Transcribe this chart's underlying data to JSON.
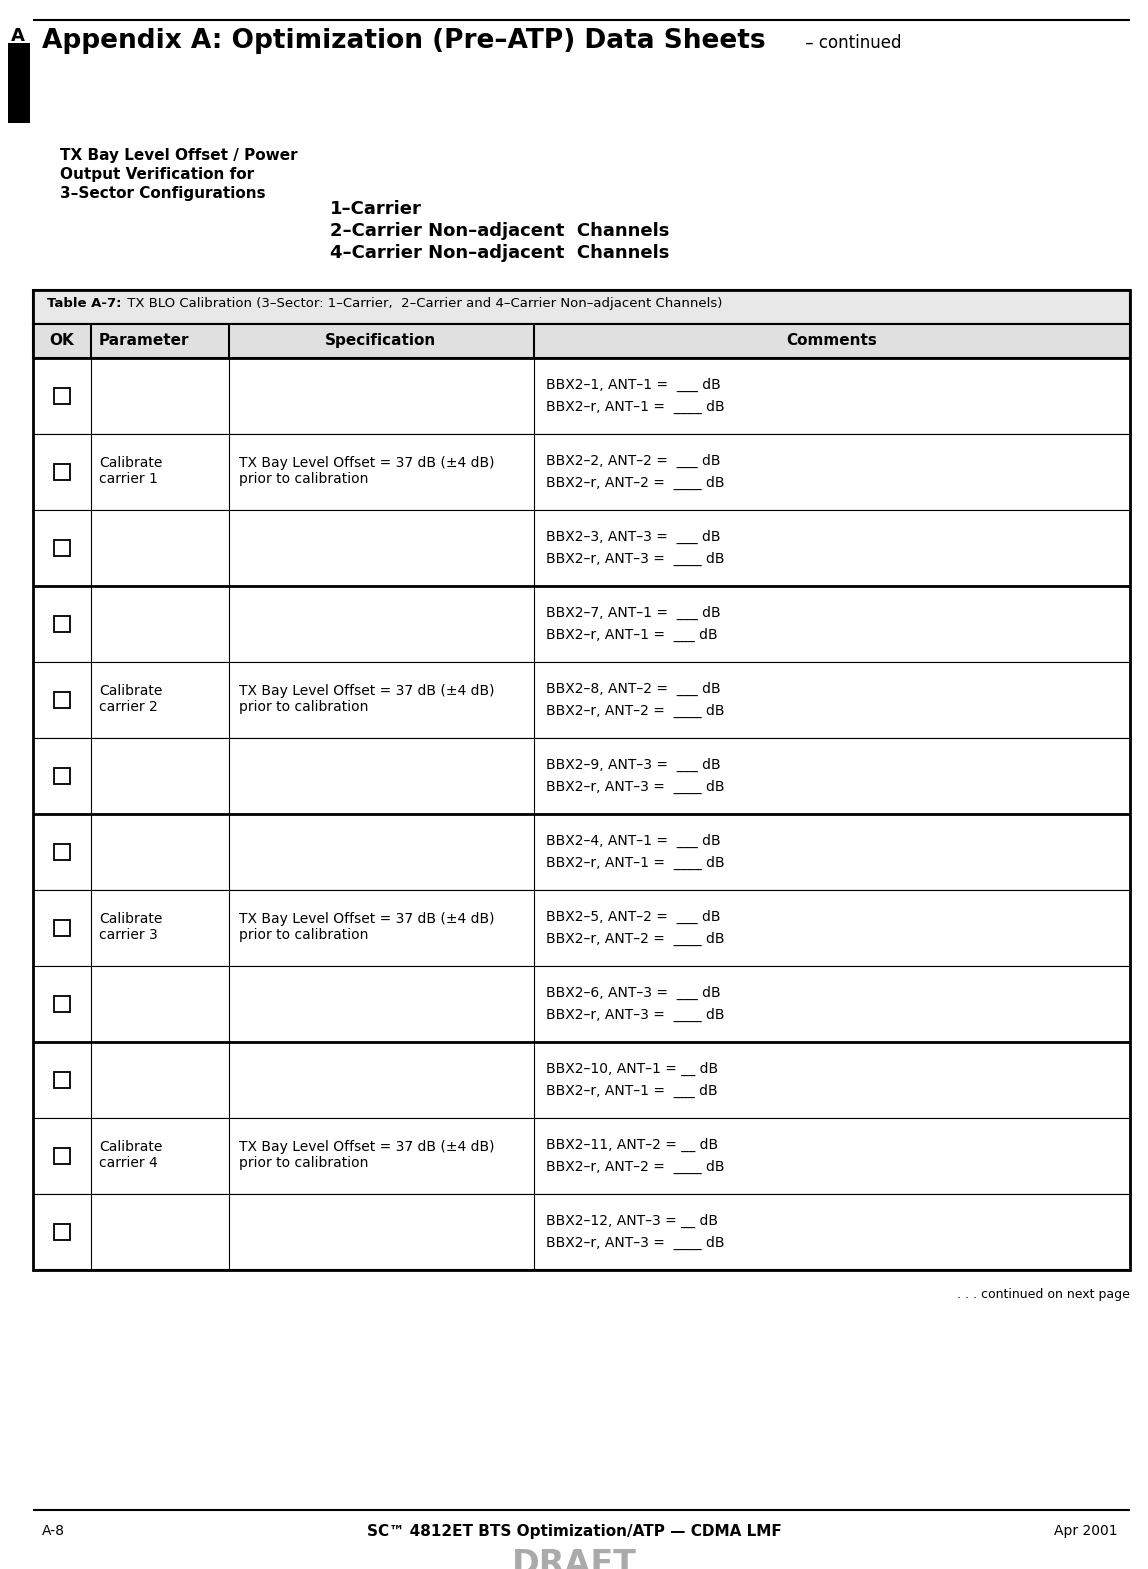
{
  "page_title_bold": "Appendix A: Optimization (Pre–ATP) Data Sheets",
  "page_title_suffix": " – continued",
  "side_letter": "A",
  "section_title_lines": [
    "TX Bay Level Offset / Power",
    "Output Verification for",
    "3–Sector Configurations"
  ],
  "center_lines": [
    "1–Carrier",
    "2–Carrier Non–adjacent  Channels",
    "4–Carrier Non–adjacent  Channels"
  ],
  "table_title_bold": "Table A-7:",
  "table_title_normal": " TX BLO Calibration (3–Sector: 1–Carrier,  2–Carrier and 4–Carrier Non–adjacent Channels)",
  "col_headers": [
    "OK",
    "Parameter",
    "Specification",
    "Comments"
  ],
  "rows": [
    {
      "carrier_label": "",
      "spec_label": "",
      "comment_lines": [
        "BBX2–1, ANT–1 =  ___ dB",
        "BBX2–r, ANT–1 =  ____ dB"
      ]
    },
    {
      "carrier_label": "Calibrate\ncarrier 1",
      "spec_label": "TX Bay Level Offset = 37 dB (±4 dB)\nprior to calibration",
      "comment_lines": [
        "BBX2–2, ANT–2 =  ___ dB",
        "BBX2–r, ANT–2 =  ____ dB"
      ]
    },
    {
      "carrier_label": "",
      "spec_label": "",
      "comment_lines": [
        "BBX2–3, ANT–3 =  ___ dB",
        "BBX2–r, ANT–3 =  ____ dB"
      ]
    },
    {
      "carrier_label": "",
      "spec_label": "",
      "comment_lines": [
        "BBX2–7, ANT–1 =  ___ dB",
        "BBX2–r, ANT–1 =  ___ dB"
      ]
    },
    {
      "carrier_label": "Calibrate\ncarrier 2",
      "spec_label": "TX Bay Level Offset = 37 dB (±4 dB)\nprior to calibration",
      "comment_lines": [
        "BBX2–8, ANT–2 =  ___ dB",
        "BBX2–r, ANT–2 =  ____ dB"
      ]
    },
    {
      "carrier_label": "",
      "spec_label": "",
      "comment_lines": [
        "BBX2–9, ANT–3 =  ___ dB",
        "BBX2–r, ANT–3 =  ____ dB"
      ]
    },
    {
      "carrier_label": "",
      "spec_label": "",
      "comment_lines": [
        "BBX2–4, ANT–1 =  ___ dB",
        "BBX2–r, ANT–1 =  ____ dB"
      ]
    },
    {
      "carrier_label": "Calibrate\ncarrier 3",
      "spec_label": "TX Bay Level Offset = 37 dB (±4 dB)\nprior to calibration",
      "comment_lines": [
        "BBX2–5, ANT–2 =  ___ dB",
        "BBX2–r, ANT–2 =  ____ dB"
      ]
    },
    {
      "carrier_label": "",
      "spec_label": "",
      "comment_lines": [
        "BBX2–6, ANT–3 =  ___ dB",
        "BBX2–r, ANT–3 =  ____ dB"
      ]
    },
    {
      "carrier_label": "",
      "spec_label": "",
      "comment_lines": [
        "BBX2–10, ANT–1 = __ dB",
        "BBX2–r, ANT–1 =  ___ dB"
      ]
    },
    {
      "carrier_label": "Calibrate\ncarrier 4",
      "spec_label": "TX Bay Level Offset = 37 dB (±4 dB)\nprior to calibration",
      "comment_lines": [
        "BBX2–11, ANT–2 = __ dB",
        "BBX2–r, ANT–2 =  ____ dB"
      ]
    },
    {
      "carrier_label": "",
      "spec_label": "",
      "comment_lines": [
        "BBX2–12, ANT–3 = __ dB",
        "BBX2–r, ANT–3 =  ____ dB"
      ]
    }
  ],
  "footer_left": "A-8",
  "footer_center": "SC™ 4812ET BTS Optimization/ATP — CDMA LMF",
  "footer_right": "Apr 2001",
  "footer_draft": "DRAFT",
  "continued_text": ". . . continued on next page",
  "bg_color": "#ffffff",
  "text_color": "#000000"
}
